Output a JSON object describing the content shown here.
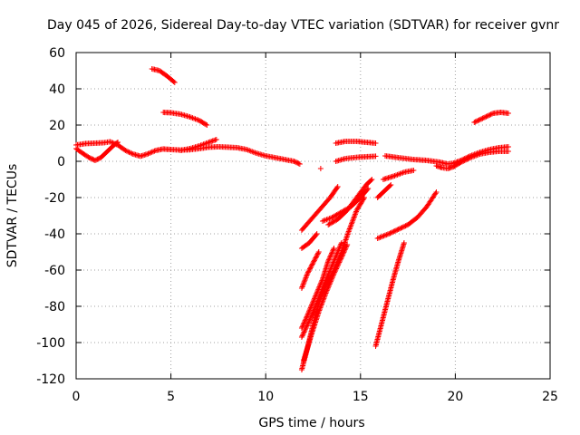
{
  "chart_data": {
    "type": "scatter",
    "title": "Day 045 of 2026, Sidereal Day-to-day VTEC variation (SDTVAR) for receiver gvnr",
    "xlabel": "GPS time / hours",
    "ylabel": "SDTVAR / TECUs",
    "xlim": [
      0,
      25
    ],
    "ylim": [
      -120,
      60
    ],
    "xticks": [
      0,
      5,
      10,
      15,
      20,
      25
    ],
    "yticks": [
      -120,
      -100,
      -80,
      -60,
      -40,
      -20,
      0,
      20,
      40,
      60
    ],
    "grid": true,
    "marker": "+",
    "series_color": "#ff0000",
    "tracks": [
      [
        [
          0.0,
          9.0
        ],
        [
          0.5,
          9.8
        ],
        [
          1.0,
          10.0
        ],
        [
          1.5,
          10.3
        ],
        [
          1.8,
          10.8
        ],
        [
          2.2,
          9.0
        ],
        [
          2.6,
          6.0
        ],
        [
          3.0,
          4.0
        ],
        [
          3.4,
          2.8
        ],
        [
          3.8,
          4.2
        ],
        [
          4.2,
          6.0
        ],
        [
          4.6,
          6.8
        ],
        [
          5.0,
          6.5
        ],
        [
          5.5,
          6.2
        ],
        [
          6.0,
          6.4
        ],
        [
          6.5,
          7.0
        ],
        [
          7.0,
          7.8
        ],
        [
          7.5,
          8.0
        ],
        [
          8.0,
          7.8
        ],
        [
          8.5,
          7.5
        ],
        [
          9.0,
          6.5
        ],
        [
          9.5,
          4.5
        ],
        [
          10.0,
          3.0
        ],
        [
          10.5,
          2.0
        ],
        [
          11.0,
          1.0
        ],
        [
          11.5,
          0.0
        ],
        [
          11.8,
          -1.5
        ]
      ],
      [
        [
          0.0,
          7.0
        ],
        [
          0.4,
          4.0
        ],
        [
          0.7,
          2.0
        ],
        [
          1.0,
          0.5
        ],
        [
          1.3,
          2.0
        ],
        [
          1.6,
          5.0
        ],
        [
          2.0,
          9.0
        ],
        [
          2.2,
          10.5
        ]
      ],
      [
        [
          5.5,
          6.0
        ],
        [
          6.0,
          7.0
        ],
        [
          6.5,
          8.5
        ],
        [
          7.0,
          10.5
        ],
        [
          7.4,
          12.0
        ]
      ],
      [
        [
          4.0,
          51.0
        ],
        [
          4.4,
          50.0
        ],
        [
          4.8,
          47.0
        ],
        [
          5.2,
          43.5
        ]
      ],
      [
        [
          4.6,
          27.0
        ],
        [
          5.0,
          26.8
        ],
        [
          5.5,
          26.0
        ],
        [
          6.0,
          24.5
        ],
        [
          6.5,
          22.5
        ],
        [
          6.9,
          20.0
        ]
      ],
      [
        [
          13.7,
          10.0
        ],
        [
          14.2,
          11.0
        ],
        [
          14.8,
          11.0
        ],
        [
          15.3,
          10.5
        ],
        [
          15.8,
          10.0
        ]
      ],
      [
        [
          13.7,
          0.0
        ],
        [
          14.2,
          1.5
        ],
        [
          14.8,
          2.2
        ],
        [
          15.3,
          2.5
        ],
        [
          15.8,
          2.8
        ]
      ],
      [
        [
          16.3,
          3.0
        ],
        [
          17.0,
          2.0
        ],
        [
          17.8,
          1.0
        ],
        [
          18.5,
          0.5
        ],
        [
          19.2,
          -0.5
        ],
        [
          19.6,
          -1.5
        ],
        [
          19.9,
          -1.0
        ],
        [
          20.3,
          0.5
        ],
        [
          20.8,
          3.0
        ],
        [
          21.3,
          5.0
        ],
        [
          21.8,
          6.5
        ],
        [
          22.3,
          7.5
        ],
        [
          22.8,
          8.0
        ]
      ],
      [
        [
          19.0,
          -2.5
        ],
        [
          19.3,
          -3.5
        ],
        [
          19.6,
          -4.0
        ],
        [
          19.9,
          -3.0
        ],
        [
          20.3,
          -0.5
        ],
        [
          20.8,
          2.0
        ],
        [
          21.3,
          4.0
        ],
        [
          21.8,
          5.0
        ],
        [
          22.3,
          5.5
        ],
        [
          22.8,
          5.5
        ]
      ],
      [
        [
          21.0,
          21.5
        ],
        [
          21.5,
          24.0
        ],
        [
          22.0,
          26.5
        ],
        [
          22.4,
          27.0
        ],
        [
          22.8,
          26.5
        ]
      ],
      [
        [
          16.2,
          -10.0
        ],
        [
          16.8,
          -8.0
        ],
        [
          17.3,
          -6.0
        ],
        [
          17.8,
          -5.0
        ]
      ],
      [
        [
          15.9,
          -20.0
        ],
        [
          16.3,
          -16.0
        ],
        [
          16.6,
          -13.0
        ]
      ],
      [
        [
          15.9,
          -42.5
        ],
        [
          16.5,
          -40.0
        ],
        [
          17.0,
          -37.5
        ],
        [
          17.5,
          -35.0
        ],
        [
          18.0,
          -31.0
        ],
        [
          18.5,
          -25.0
        ],
        [
          19.0,
          -17.0
        ]
      ],
      [
        [
          15.8,
          -102.0
        ],
        [
          16.1,
          -90.0
        ],
        [
          16.4,
          -78.0
        ],
        [
          16.7,
          -66.0
        ],
        [
          17.0,
          -55.0
        ],
        [
          17.3,
          -45.0
        ]
      ],
      [
        [
          11.9,
          -38.0
        ],
        [
          12.4,
          -32.0
        ],
        [
          12.9,
          -26.0
        ],
        [
          13.4,
          -20.0
        ],
        [
          13.8,
          -14.0
        ]
      ],
      [
        [
          11.9,
          -70.0
        ],
        [
          12.2,
          -62.0
        ],
        [
          12.5,
          -56.0
        ],
        [
          12.8,
          -50.0
        ]
      ],
      [
        [
          11.9,
          -48.0
        ],
        [
          12.3,
          -45.0
        ],
        [
          12.7,
          -40.0
        ]
      ],
      [
        [
          13.0,
          -33.0
        ],
        [
          13.5,
          -31.0
        ],
        [
          14.0,
          -28.0
        ],
        [
          14.5,
          -25.0
        ],
        [
          15.0,
          -20.0
        ],
        [
          15.4,
          -15.0
        ]
      ],
      [
        [
          13.3,
          -35.0
        ],
        [
          13.8,
          -32.0
        ],
        [
          14.3,
          -27.0
        ],
        [
          14.8,
          -20.0
        ],
        [
          15.3,
          -13.0
        ],
        [
          15.6,
          -10.0
        ]
      ],
      [
        [
          11.9,
          -97.0
        ],
        [
          12.3,
          -88.0
        ],
        [
          12.7,
          -78.0
        ],
        [
          13.0,
          -70.0
        ],
        [
          13.4,
          -60.0
        ],
        [
          13.8,
          -50.0
        ],
        [
          14.0,
          -45.0
        ]
      ],
      [
        [
          11.9,
          -92.0
        ],
        [
          12.2,
          -85.0
        ],
        [
          12.6,
          -75.0
        ],
        [
          13.0,
          -65.0
        ],
        [
          13.3,
          -55.0
        ],
        [
          13.6,
          -48.0
        ]
      ],
      [
        [
          11.9,
          -115.0
        ],
        [
          12.2,
          -103.0
        ],
        [
          12.5,
          -90.0
        ],
        [
          12.8,
          -78.0
        ],
        [
          13.2,
          -68.0
        ],
        [
          13.6,
          -60.0
        ],
        [
          14.0,
          -50.0
        ],
        [
          14.4,
          -38.0
        ],
        [
          14.8,
          -27.0
        ],
        [
          15.2,
          -20.0
        ]
      ],
      [
        [
          12.0,
          -110.0
        ],
        [
          12.4,
          -96.0
        ],
        [
          12.8,
          -83.0
        ],
        [
          13.2,
          -72.0
        ],
        [
          13.6,
          -62.0
        ],
        [
          14.0,
          -53.0
        ],
        [
          14.3,
          -46.0
        ]
      ],
      [
        [
          12.9,
          -4.0
        ]
      ]
    ]
  }
}
